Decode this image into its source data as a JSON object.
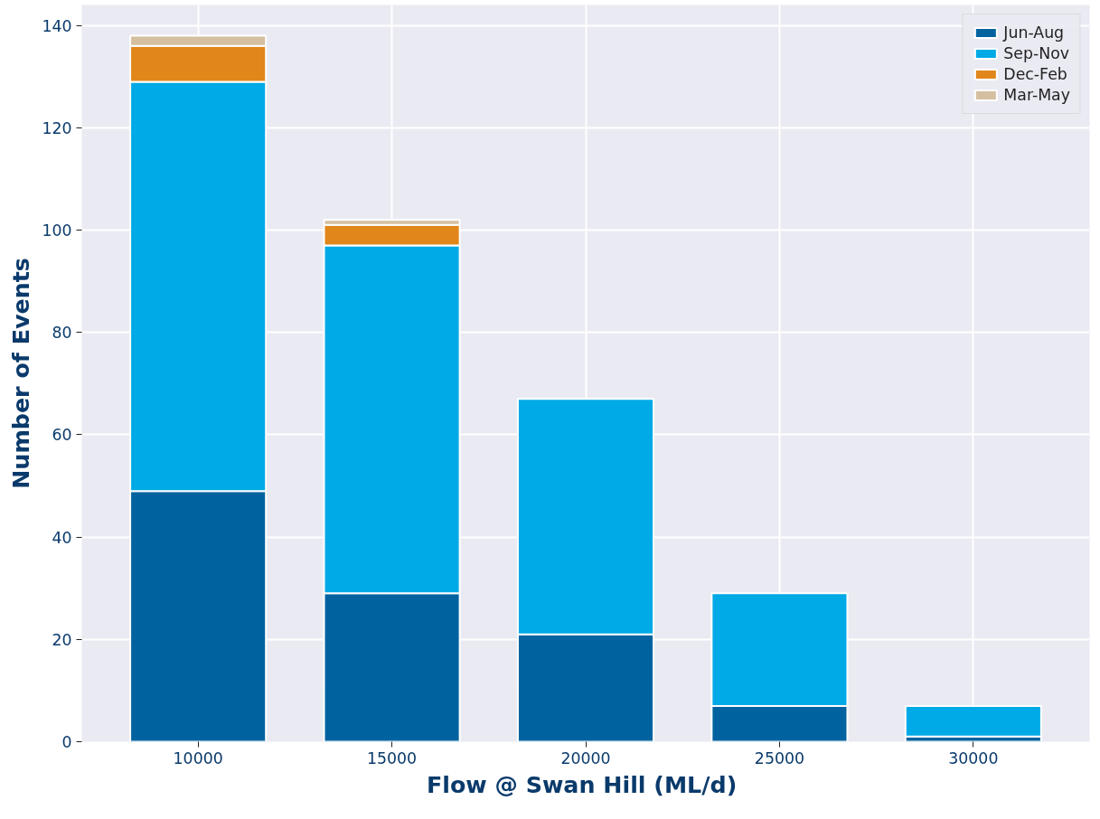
{
  "chart_data": {
    "type": "bar",
    "stacked": true,
    "xlabel": "Flow @ Swan Hill  (ML/d)",
    "ylabel": "Number of Events",
    "categories": [
      "10000",
      "15000",
      "20000",
      "25000",
      "30000"
    ],
    "series": [
      {
        "name": "Jun-Aug",
        "color": "#0063a0",
        "values": [
          49,
          29,
          21,
          7,
          1
        ]
      },
      {
        "name": "Sep-Nov",
        "color": "#00aae6",
        "values": [
          80,
          68,
          46,
          22,
          6
        ]
      },
      {
        "name": "Dec-Feb",
        "color": "#e0861a",
        "values": [
          7,
          4,
          0,
          0,
          0
        ]
      },
      {
        "name": "Mar-May",
        "color": "#d4bfa0",
        "values": [
          2,
          1,
          0,
          0,
          0
        ]
      }
    ],
    "ylim": [
      0,
      144
    ],
    "yticks": [
      0,
      20,
      40,
      60,
      80,
      100,
      120,
      140
    ],
    "grid": true,
    "legend": "top right"
  }
}
